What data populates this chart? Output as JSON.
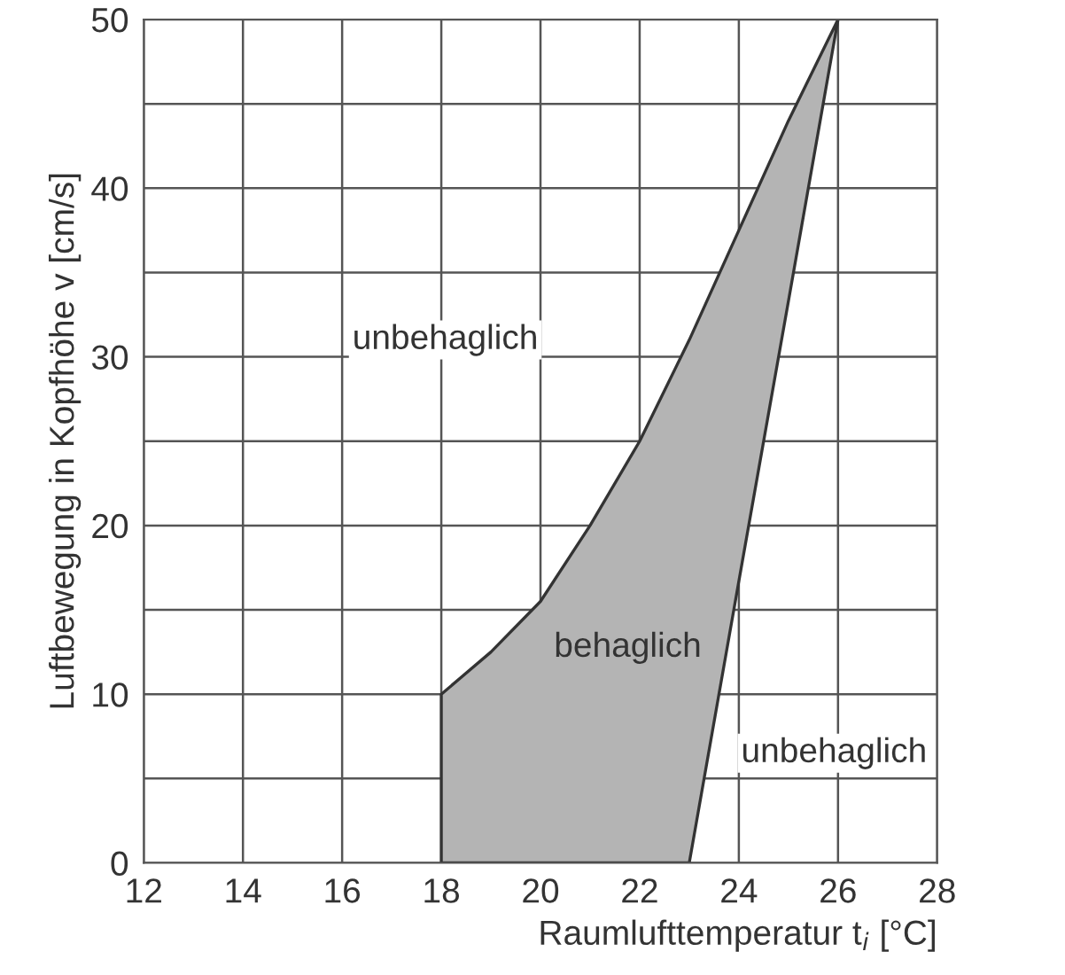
{
  "chart_data": {
    "type": "area",
    "xlabel": "Raumlufttemperatur t$_{i}$ [°C]",
    "ylabel": "Luftbewegung in Kopfhöhe v [cm/s]",
    "series": [
      {
        "color": "#b4b4b4",
        "x": [
          18,
          18,
          19,
          20,
          21,
          22,
          23,
          24,
          25,
          26,
          25,
          24,
          23,
          18
        ],
        "values": [
          0,
          10,
          12.5,
          15.5,
          20,
          25,
          31,
          37.5,
          44,
          50,
          33.3,
          16.7,
          0,
          0
        ]
      }
    ],
    "xlim": [
      12,
      28
    ],
    "xticks": [
      12,
      14,
      16,
      18,
      20,
      22,
      24,
      26,
      28
    ],
    "ylim": [
      0,
      50
    ],
    "yticks": [
      0,
      {
        "value": 5,
        "label": null
      },
      10,
      {
        "value": 15,
        "label": null
      },
      20,
      {
        "value": 25,
        "label": null
      },
      30,
      {
        "value": 35,
        "label": null
      },
      40,
      {
        "value": 45,
        "label": null
      },
      50
    ],
    "grid": true,
    "annotations": [
      "unbehaglich",
      "behaglich",
      "unbehaglich"
    ]
  }
}
